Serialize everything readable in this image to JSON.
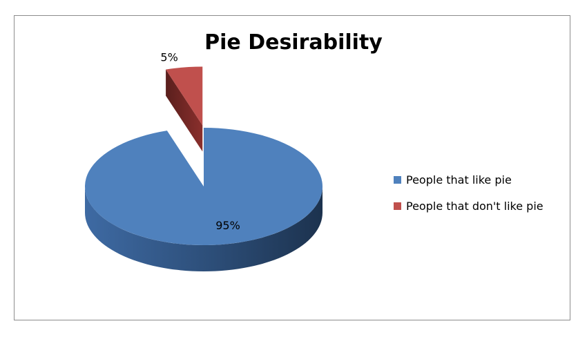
{
  "chart_data": {
    "type": "pie",
    "title": "Pie Desirability",
    "categories": [
      "People that like pie",
      "People that don't like pie"
    ],
    "values": [
      95,
      5
    ],
    "data_labels": [
      "95%",
      "5%"
    ],
    "colors": [
      "#4f81bd",
      "#c0504d"
    ],
    "legend_position": "right",
    "three_d": true,
    "exploded": "People that don't like pie"
  }
}
